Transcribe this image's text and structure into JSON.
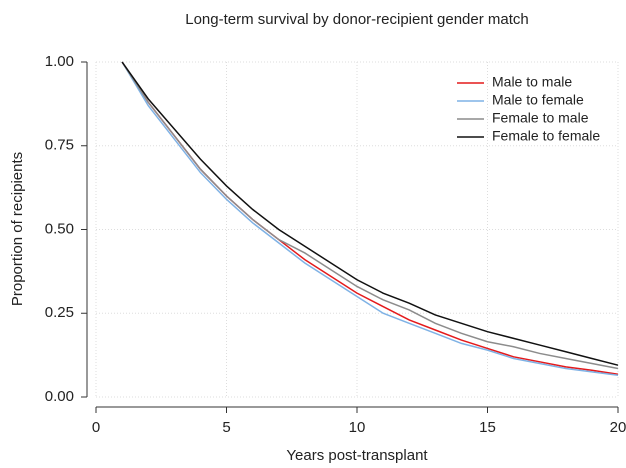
{
  "chart_data": {
    "type": "line",
    "title": "Long-term survival by donor-recipient gender match",
    "x_label": "Years post-transplant",
    "y_label": "Proportion of recipients",
    "x": [
      1,
      2,
      3,
      4,
      5,
      6,
      7,
      8,
      9,
      10,
      11,
      12,
      13,
      14,
      15,
      16,
      17,
      18,
      19,
      20
    ],
    "series": [
      {
        "name": "Male to male",
        "color": "#e41a1c",
        "values": [
          1.0,
          0.88,
          0.78,
          0.68,
          0.6,
          0.53,
          0.47,
          0.41,
          0.36,
          0.31,
          0.27,
          0.23,
          0.2,
          0.17,
          0.145,
          0.12,
          0.105,
          0.09,
          0.08,
          0.068
        ]
      },
      {
        "name": "Male to female",
        "color": "#7fb2e5",
        "values": [
          1.0,
          0.87,
          0.77,
          0.67,
          0.59,
          0.52,
          0.46,
          0.4,
          0.35,
          0.3,
          0.25,
          0.22,
          0.19,
          0.16,
          0.14,
          0.115,
          0.1,
          0.085,
          0.075,
          0.065
        ]
      },
      {
        "name": "Female to male",
        "color": "#8c8c8c",
        "values": [
          1.0,
          0.88,
          0.78,
          0.68,
          0.6,
          0.53,
          0.47,
          0.43,
          0.38,
          0.33,
          0.29,
          0.26,
          0.22,
          0.19,
          0.165,
          0.15,
          0.13,
          0.115,
          0.1,
          0.085
        ]
      },
      {
        "name": "Female to female",
        "color": "#111111",
        "values": [
          1.0,
          0.89,
          0.8,
          0.71,
          0.63,
          0.56,
          0.5,
          0.45,
          0.4,
          0.35,
          0.31,
          0.28,
          0.245,
          0.22,
          0.195,
          0.175,
          0.155,
          0.135,
          0.115,
          0.095
        ]
      }
    ],
    "xlim": [
      0,
      20
    ],
    "xticks": [
      0,
      5,
      10,
      15,
      20
    ],
    "ylim": [
      0,
      1
    ],
    "yticks": [
      {
        "value": 0,
        "label": "0.00"
      },
      0.25,
      {
        "value": 0.5,
        "label": "0.50"
      },
      0.75,
      {
        "value": 1,
        "label": "1.00"
      }
    ],
    "grid": true,
    "legend": "top-right"
  }
}
